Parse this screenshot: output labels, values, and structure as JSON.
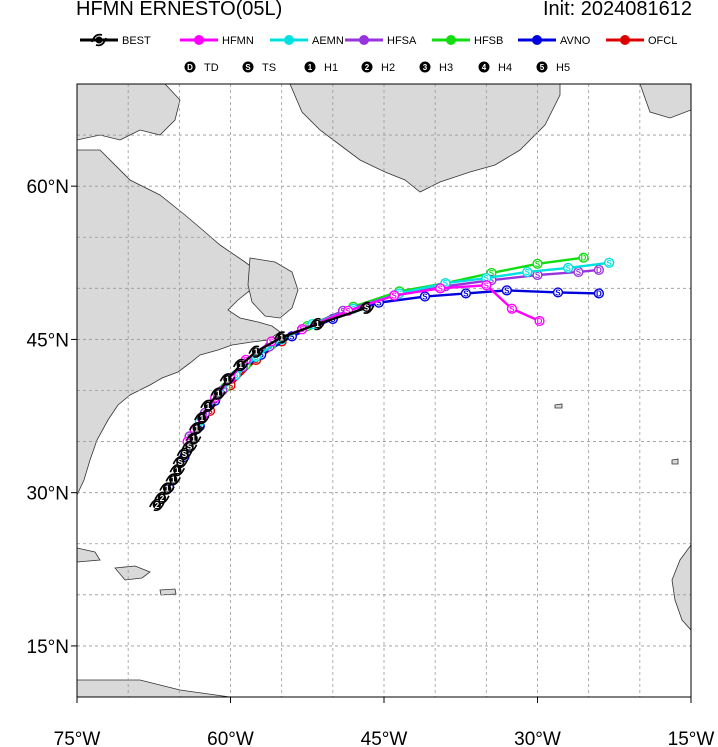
{
  "header": {
    "title": "HFMN ERNESTO(05L)",
    "init": "Init: 2024081612"
  },
  "legend": {
    "models": [
      {
        "name": "BEST",
        "color": "#000000"
      },
      {
        "name": "HFMN",
        "color": "#ff00ff"
      },
      {
        "name": "AEMN",
        "color": "#00e0e0"
      },
      {
        "name": "HFSA",
        "color": "#9933dd"
      },
      {
        "name": "HFSB",
        "color": "#11dd11"
      },
      {
        "name": "AVNO",
        "color": "#0000dd"
      },
      {
        "name": "OFCL",
        "color": "#dd0000"
      }
    ],
    "intensity": [
      {
        "symbol": "D",
        "label": "TD"
      },
      {
        "symbol": "S",
        "label": "TS"
      },
      {
        "symbol": "1",
        "label": "H1"
      },
      {
        "symbol": "2",
        "label": "H2"
      },
      {
        "symbol": "3",
        "label": "H3"
      },
      {
        "symbol": "4",
        "label": "H4"
      },
      {
        "symbol": "5",
        "label": "H5"
      }
    ]
  },
  "axes": {
    "x_ticks": [
      "75°W",
      "60°W",
      "45°W",
      "30°W",
      "15°W"
    ],
    "y_ticks": [
      "60°N",
      "45°N",
      "30°N",
      "15°N"
    ]
  },
  "chart_data": {
    "type": "map-track",
    "lon_range": [
      -75,
      -15
    ],
    "lat_range": [
      10,
      70
    ],
    "lon_ticks": [
      -75,
      -70,
      -65,
      -60,
      -55,
      -50,
      -45,
      -40,
      -35,
      -30,
      -25,
      -20,
      -15
    ],
    "lat_ticks": [
      15,
      20,
      25,
      30,
      35,
      40,
      45,
      50,
      55,
      60,
      65
    ],
    "grid": true,
    "tracks": [
      {
        "name": "BEST",
        "color": "#000000",
        "points": [
          [
            -67.2,
            28.8,
            "2"
          ],
          [
            -66.7,
            29.5,
            "2"
          ],
          [
            -66.2,
            30.4,
            "1"
          ],
          [
            -65.6,
            31.3,
            "1"
          ],
          [
            -65.2,
            32.2,
            "1"
          ],
          [
            -64.9,
            33.0,
            "S"
          ],
          [
            -64.5,
            33.8,
            "S"
          ],
          [
            -64.0,
            34.5,
            "S"
          ],
          [
            -63.6,
            35.3,
            "1"
          ],
          [
            -63.3,
            36.3,
            "1"
          ],
          [
            -62.8,
            37.3,
            "1"
          ],
          [
            -62.2,
            38.5,
            "1"
          ],
          [
            -61.2,
            39.7,
            "1"
          ],
          [
            -60.3,
            41.1,
            "1"
          ],
          [
            -59.0,
            42.5,
            "1"
          ],
          [
            -57.5,
            43.8,
            "1"
          ],
          [
            -55.0,
            45.2,
            "1"
          ],
          [
            -51.5,
            46.5,
            "1"
          ],
          [
            -46.7,
            48.1,
            "S"
          ]
        ]
      },
      {
        "name": "HFMN",
        "color": "#ff00ff",
        "points": [
          [
            -64.2,
            35.0,
            "S"
          ],
          [
            -63.5,
            36.2,
            "S"
          ],
          [
            -62.8,
            37.3,
            "S"
          ],
          [
            -61.5,
            39.3,
            "S"
          ],
          [
            -60.0,
            41.2,
            "S"
          ],
          [
            -58.5,
            43.0,
            "S"
          ],
          [
            -56.0,
            44.8,
            "S"
          ],
          [
            -53.0,
            46.0,
            "S"
          ],
          [
            -48.5,
            47.8,
            "S"
          ],
          [
            -44.0,
            49.3,
            "S"
          ],
          [
            -39.5,
            50.0,
            "S"
          ],
          [
            -35.0,
            50.3,
            "S"
          ],
          [
            -32.5,
            48.0,
            "S"
          ],
          [
            -29.8,
            46.8,
            "D"
          ]
        ]
      },
      {
        "name": "AEMN",
        "color": "#00e0e0",
        "points": [
          [
            -64.0,
            35.0,
            "S"
          ],
          [
            -63.0,
            37.0,
            "S"
          ],
          [
            -61.3,
            39.5,
            "S"
          ],
          [
            -59.5,
            41.5,
            "S"
          ],
          [
            -57.5,
            43.3,
            "S"
          ],
          [
            -55.0,
            45.0,
            "S"
          ],
          [
            -52.0,
            46.5,
            "S"
          ],
          [
            -48.0,
            48.0,
            "S"
          ],
          [
            -43.5,
            49.5,
            "S"
          ],
          [
            -39.0,
            50.5,
            "S"
          ],
          [
            -35.0,
            51.0,
            "S"
          ],
          [
            -31.0,
            51.6,
            "S"
          ],
          [
            -27.0,
            52.0,
            "S"
          ],
          [
            -23.0,
            52.5,
            "S"
          ]
        ]
      },
      {
        "name": "HFSA",
        "color": "#9933dd",
        "points": [
          [
            -64.0,
            35.5,
            "S"
          ],
          [
            -62.5,
            37.8,
            "S"
          ],
          [
            -60.8,
            40.0,
            "S"
          ],
          [
            -58.8,
            42.3,
            "S"
          ],
          [
            -56.2,
            44.3,
            "S"
          ],
          [
            -53.0,
            46.0,
            "S"
          ],
          [
            -49.0,
            47.8,
            "S"
          ],
          [
            -44.0,
            49.3,
            "S"
          ],
          [
            -39.0,
            50.2,
            "S"
          ],
          [
            -34.5,
            50.8,
            "S"
          ],
          [
            -30.0,
            51.3,
            "S"
          ],
          [
            -26.0,
            51.6,
            "S"
          ],
          [
            -24.0,
            51.8,
            "D"
          ]
        ]
      },
      {
        "name": "HFSB",
        "color": "#11dd11",
        "points": [
          [
            -64.0,
            35.5,
            "S"
          ],
          [
            -62.5,
            37.8,
            "S"
          ],
          [
            -60.5,
            40.3,
            "S"
          ],
          [
            -58.5,
            42.5,
            "S"
          ],
          [
            -56.0,
            44.5,
            "S"
          ],
          [
            -52.5,
            46.3,
            "S"
          ],
          [
            -48.0,
            48.2,
            "S"
          ],
          [
            -43.5,
            49.7,
            "S"
          ],
          [
            -39.0,
            50.5,
            "S"
          ],
          [
            -34.5,
            51.5,
            "S"
          ],
          [
            -30.0,
            52.4,
            "S"
          ],
          [
            -25.5,
            53.0,
            "D"
          ]
        ]
      },
      {
        "name": "AVNO",
        "color": "#0000dd",
        "points": [
          [
            -66.0,
            30.5,
            "S"
          ],
          [
            -64.5,
            33.5,
            "S"
          ],
          [
            -63.0,
            36.5,
            "S"
          ],
          [
            -61.5,
            39.0,
            "S"
          ],
          [
            -59.5,
            41.5,
            "S"
          ],
          [
            -57.0,
            43.5,
            "S"
          ],
          [
            -54.0,
            45.3,
            "S"
          ],
          [
            -50.0,
            47.0,
            "S"
          ],
          [
            -45.5,
            48.6,
            "S"
          ],
          [
            -41.0,
            49.2,
            "S"
          ],
          [
            -37.0,
            49.5,
            "S"
          ],
          [
            -33.0,
            49.8,
            "S"
          ],
          [
            -28.0,
            49.6,
            "S"
          ],
          [
            -24.0,
            49.5,
            "D"
          ]
        ]
      },
      {
        "name": "OFCL",
        "color": "#dd0000",
        "points": [
          [
            -64.0,
            35.5,
            "S"
          ],
          [
            -62.0,
            38.0,
            "S"
          ],
          [
            -60.0,
            40.5,
            "S"
          ],
          [
            -57.5,
            43.0,
            "S"
          ],
          [
            -55.0,
            44.8,
            "S"
          ]
        ]
      }
    ]
  }
}
